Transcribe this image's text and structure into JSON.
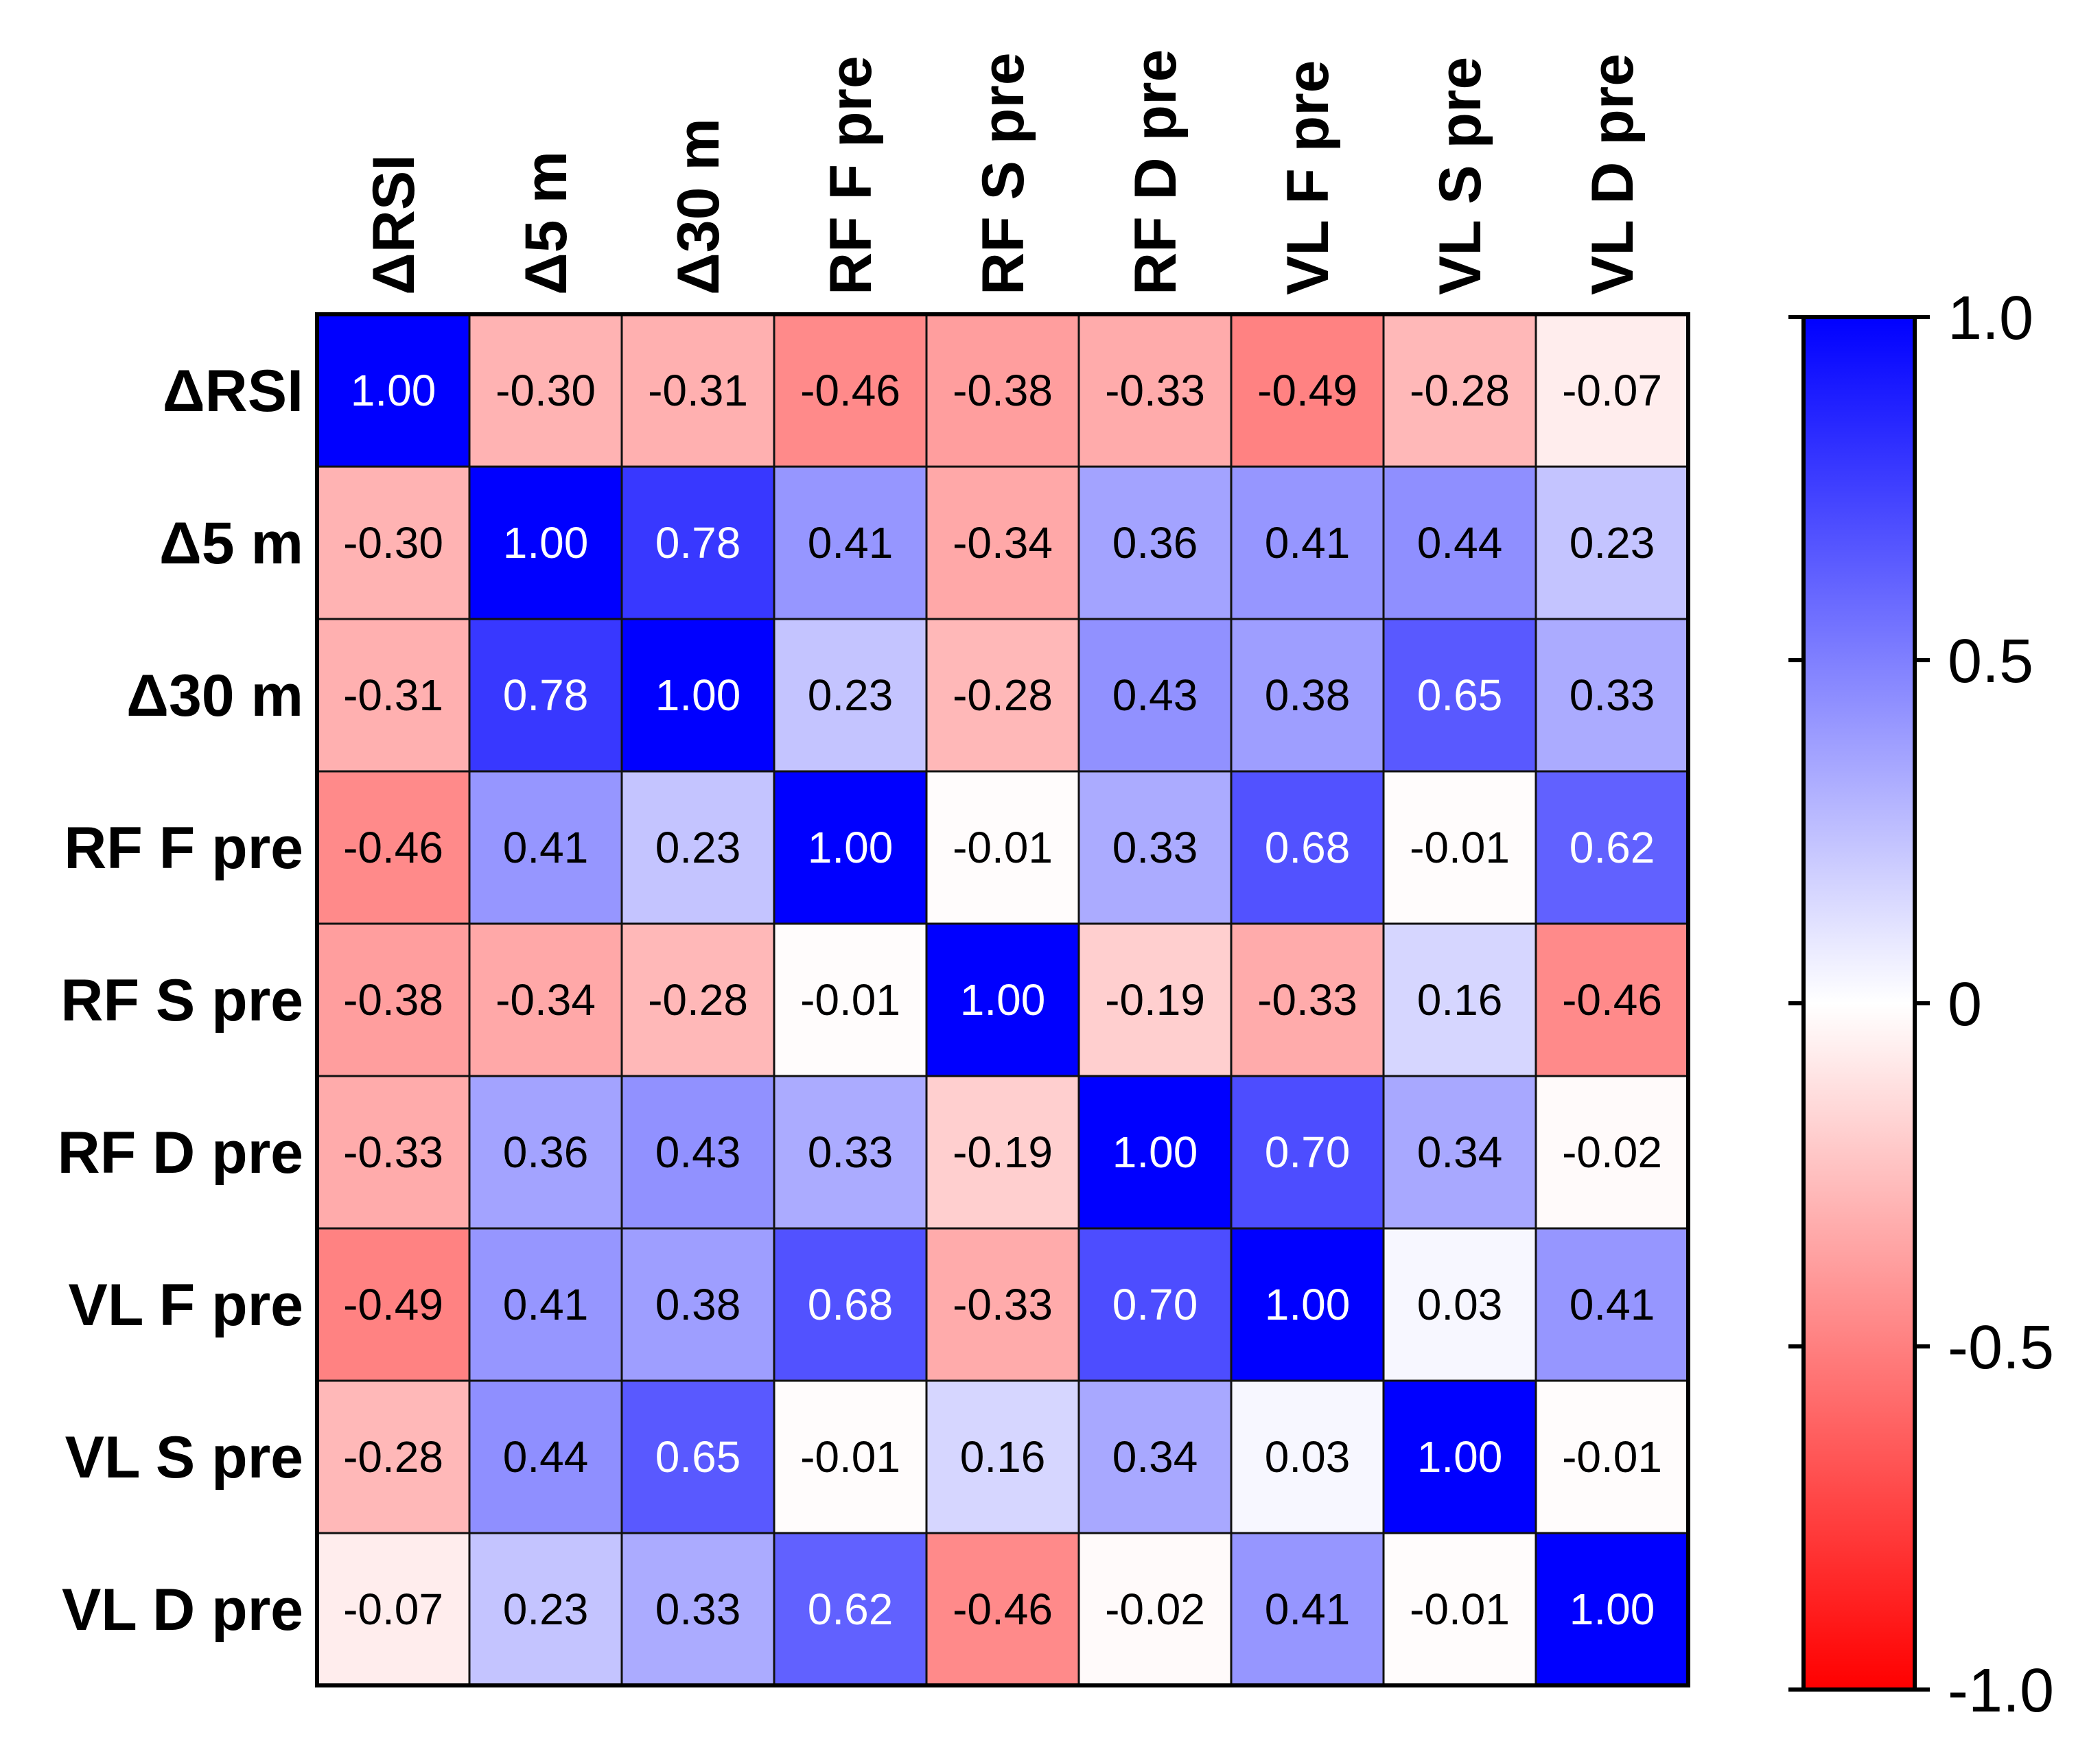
{
  "chart_data": {
    "type": "heatmap",
    "variables": [
      "ΔRSI",
      "Δ5 m",
      "Δ30 m",
      "RF F pre",
      "RF S pre",
      "RF D pre",
      "VL F pre",
      "VL S pre",
      "VL D pre"
    ],
    "matrix": [
      [
        1.0,
        -0.3,
        -0.31,
        -0.46,
        -0.38,
        -0.33,
        -0.49,
        -0.28,
        -0.07
      ],
      [
        -0.3,
        1.0,
        0.78,
        0.41,
        -0.34,
        0.36,
        0.41,
        0.44,
        0.23
      ],
      [
        -0.31,
        0.78,
        1.0,
        0.23,
        -0.28,
        0.43,
        0.38,
        0.65,
        0.33
      ],
      [
        -0.46,
        0.41,
        0.23,
        1.0,
        -0.01,
        0.33,
        0.68,
        -0.01,
        0.62
      ],
      [
        -0.38,
        -0.34,
        -0.28,
        -0.01,
        1.0,
        -0.19,
        -0.33,
        0.16,
        -0.46
      ],
      [
        -0.33,
        0.36,
        0.43,
        0.33,
        -0.19,
        1.0,
        0.7,
        0.34,
        -0.02
      ],
      [
        -0.49,
        0.41,
        0.38,
        0.68,
        -0.33,
        0.7,
        1.0,
        0.03,
        0.41
      ],
      [
        -0.28,
        0.44,
        0.65,
        -0.01,
        0.16,
        0.34,
        0.03,
        1.0,
        -0.01
      ],
      [
        -0.07,
        0.23,
        0.33,
        0.62,
        -0.46,
        -0.02,
        0.41,
        -0.01,
        1.0
      ]
    ],
    "colorbar": {
      "range": [
        -1.0,
        1.0
      ],
      "ticks": [
        1.0,
        0.5,
        0,
        -0.5,
        -1.0
      ],
      "tick_labels": [
        "1.0",
        "0.5",
        "0",
        "-0.5",
        "-1.0"
      ],
      "colors": {
        "negative": "#ff0000",
        "zero": "#ffffff",
        "positive": "#0000ff"
      }
    }
  }
}
